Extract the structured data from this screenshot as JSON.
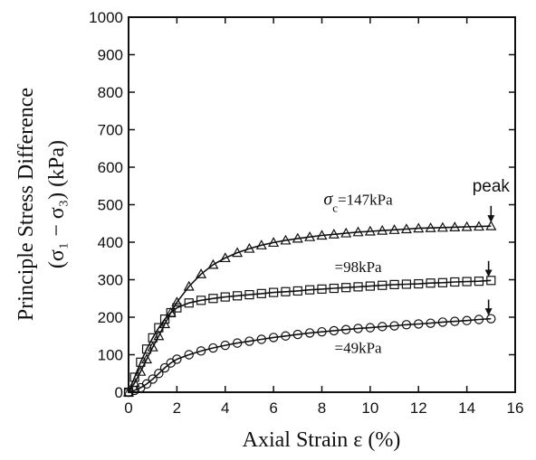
{
  "chart_data": {
    "type": "scatter",
    "title": "",
    "xlabel": "Axial Strain  ε  (%)",
    "ylabel_line1": "Principle Stress Difference",
    "ylabel_line2": "(σ₁ − σ₃)   (kPa)",
    "xlim": [
      0,
      16
    ],
    "ylim": [
      0,
      1000
    ],
    "x_ticks": [
      0,
      2,
      4,
      6,
      8,
      10,
      12,
      14,
      16
    ],
    "y_ticks": [
      0,
      100,
      200,
      300,
      400,
      500,
      600,
      700,
      800,
      900,
      1000
    ],
    "grid": false,
    "series": [
      {
        "marker": "triangle",
        "color": "#111111",
        "x": [
          0,
          0.25,
          0.5,
          0.75,
          1,
          1.25,
          1.5,
          1.75,
          2,
          2.5,
          3,
          3.5,
          4,
          4.5,
          5,
          5.5,
          6,
          6.5,
          7,
          7.5,
          8,
          8.5,
          9,
          9.5,
          10,
          10.5,
          11,
          11.5,
          12,
          12.5,
          13,
          13.5,
          14,
          14.5,
          15
        ],
        "values": [
          0,
          25,
          55,
          88,
          120,
          150,
          182,
          212,
          240,
          282,
          315,
          340,
          358,
          372,
          383,
          392,
          399,
          405,
          410,
          414,
          418,
          421,
          424,
          427,
          429,
          431,
          433,
          435,
          437,
          438,
          439,
          440,
          441,
          442,
          443
        ]
      },
      {
        "marker": "square",
        "color": "#111111",
        "x": [
          0,
          0.25,
          0.5,
          0.75,
          1,
          1.25,
          1.5,
          1.75,
          2,
          2.5,
          3,
          3.5,
          4,
          4.5,
          5,
          5.5,
          6,
          6.5,
          7,
          7.5,
          8,
          8.5,
          9,
          9.5,
          10,
          10.5,
          11,
          11.5,
          12,
          12.5,
          13,
          13.5,
          14,
          14.5,
          15
        ],
        "values": [
          0,
          40,
          80,
          115,
          145,
          172,
          195,
          212,
          225,
          238,
          245,
          250,
          254,
          257,
          260,
          263,
          266,
          268,
          270,
          273,
          275,
          277,
          279,
          281,
          283,
          285,
          287,
          288,
          289,
          291,
          292,
          294,
          295,
          296,
          298
        ]
      },
      {
        "marker": "circle",
        "color": "#111111",
        "x": [
          0,
          0.25,
          0.5,
          0.75,
          1,
          1.25,
          1.5,
          1.75,
          2,
          2.5,
          3,
          3.5,
          4,
          4.5,
          5,
          5.5,
          6,
          6.5,
          7,
          7.5,
          8,
          8.5,
          9,
          9.5,
          10,
          10.5,
          11,
          11.5,
          12,
          12.5,
          13,
          13.5,
          14,
          14.5,
          15
        ],
        "values": [
          0,
          5,
          12,
          22,
          35,
          50,
          65,
          78,
          88,
          100,
          110,
          118,
          125,
          131,
          136,
          141,
          146,
          150,
          154,
          158,
          161,
          164,
          167,
          170,
          172,
          175,
          177,
          180,
          182,
          184,
          187,
          189,
          191,
          194,
          196
        ]
      }
    ],
    "annotations": [
      {
        "id": "sigma",
        "text_main": "σ",
        "text_sub": "c",
        "text_rest": "=147kPa",
        "at": [
          9.5,
          500
        ]
      },
      {
        "id": "98",
        "text": "=98kPa",
        "at": [
          9.5,
          320
        ]
      },
      {
        "id": "49",
        "text": "=49kPa",
        "at": [
          9.5,
          105
        ]
      },
      {
        "id": "peak",
        "text": "peak",
        "at": [
          15.0,
          535
        ]
      }
    ],
    "peak_arrows": [
      {
        "x": 15.0,
        "y_from": 497,
        "y_to": 455
      },
      {
        "x": 14.9,
        "y_from": 350,
        "y_to": 310
      },
      {
        "x": 14.9,
        "y_from": 247,
        "y_to": 207
      }
    ]
  }
}
